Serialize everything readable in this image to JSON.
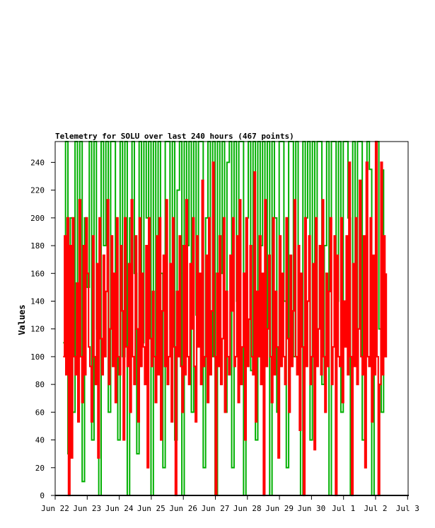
{
  "chart_data": {
    "type": "line",
    "title": "Telemetry for SOLU over last 240 hours (467 points)",
    "xlabel": "",
    "ylabel": "Values",
    "x_ticks": [
      "Jun 22",
      "Jun 23",
      "Jun 24",
      "Jun 25",
      "Jun 26",
      "Jun 27",
      "Jun 28",
      "Jun 29",
      "Jun 30",
      "Jul 1",
      "Jul 2",
      "Jul 3"
    ],
    "y_ticks": [
      0,
      20,
      40,
      60,
      80,
      100,
      120,
      140,
      160,
      180,
      200,
      220,
      240
    ],
    "ylim": [
      0,
      255
    ],
    "xlim": [
      "Jun 22 00:00",
      "Jul 3 00:00"
    ],
    "grid": false,
    "legend": "none",
    "series": [
      {
        "color": "#00b000",
        "x_start": "Jun 22 06:00",
        "x_end": "Jul 2 06:00",
        "values": [
          110,
          255,
          30,
          200,
          60,
          255,
          140,
          255,
          10,
          200,
          150,
          255,
          40,
          255,
          120,
          0,
          255,
          180,
          255,
          60,
          255,
          255,
          140,
          40,
          255,
          100,
          255,
          0,
          200,
          255,
          160,
          30,
          255,
          110,
          255,
          200,
          255,
          0,
          255,
          90,
          255,
          160,
          20,
          255,
          255,
          120,
          255,
          40,
          220,
          255,
          0,
          255,
          180,
          255,
          60,
          255,
          130,
          255,
          255,
          20,
          200,
          255,
          100,
          255,
          0,
          255,
          160,
          255,
          60,
          240,
          255,
          20,
          255,
          140,
          255,
          255,
          0,
          200,
          255,
          90,
          255,
          40,
          255,
          180,
          255,
          120,
          255,
          0,
          255,
          200,
          60,
          255,
          255,
          140,
          20,
          255,
          255,
          100,
          255,
          160,
          0,
          255,
          200,
          255,
          40,
          255,
          120,
          255,
          255,
          80,
          180,
          255,
          0,
          255,
          255,
          140,
          255,
          60,
          255,
          255,
          200,
          0,
          255,
          100,
          255,
          255,
          40,
          160,
          255,
          235,
          0,
          160,
          255,
          120,
          60,
          235
        ]
      },
      {
        "color": "#ff0000",
        "x_start": "Jun 22 06:00",
        "x_end": "Jul 2 08:00",
        "values": [
          100,
          187,
          87,
          200,
          0,
          180,
          27,
          200,
          100,
          87,
          153,
          53,
          213,
          100,
          67,
          180,
          87,
          200,
          160,
          107,
          93,
          53,
          187,
          100,
          80,
          167,
          27,
          200,
          113,
          87,
          173,
          100,
          147,
          213,
          80,
          120,
          187,
          93,
          160,
          67,
          200,
          100,
          87,
          180,
          133,
          40,
          200,
          107,
          93,
          167,
          60,
          213,
          100,
          80,
          187,
          120,
          53,
          200,
          93,
          160,
          107,
          80,
          180,
          20,
          200,
          113,
          93,
          147,
          100,
          67,
          187,
          87,
          200,
          40,
          133,
          173,
          93,
          213,
          80,
          100,
          167,
          53,
          200,
          107,
          0,
          147,
          100,
          187,
          93,
          60,
          180,
          87,
          213,
          100,
          80,
          167,
          120,
          200,
          93,
          53,
          187,
          107,
          160,
          80,
          227,
          93,
          100,
          173,
          67,
          200,
          87,
          133,
          240,
          100,
          0,
          160,
          93,
          187,
          80,
          113,
          200,
          60,
          147,
          100,
          87,
          173,
          133,
          200,
          93,
          100,
          187,
          67,
          213,
          80,
          107,
          160,
          40,
          200,
          93,
          127,
          180,
          100,
          87,
          233,
          53,
          147,
          100,
          187,
          80,
          160,
          0,
          213,
          93,
          120,
          173,
          100,
          67,
          200,
          87,
          147,
          107,
          27,
          187,
          93,
          160,
          100,
          80,
          200,
          113,
          60,
          173,
          93,
          133,
          213,
          100,
          87,
          180,
          47,
          160,
          107,
          0,
          200,
          93,
          140,
          187,
          80,
          100,
          167,
          33,
          200,
          93,
          120,
          180,
          87,
          213,
          100,
          60,
          160,
          93,
          147,
          200,
          80,
          107,
          187,
          0,
          173,
          100,
          93,
          200,
          67,
          140,
          107,
          187,
          87,
          240,
          100,
          0,
          167,
          93,
          200,
          80,
          120,
          227,
          100,
          87,
          187,
          20,
          240,
          100,
          93,
          200,
          53,
          173,
          87,
          255,
          100,
          0,
          80,
          240,
          87,
          187,
          100,
          160
        ]
      }
    ]
  }
}
